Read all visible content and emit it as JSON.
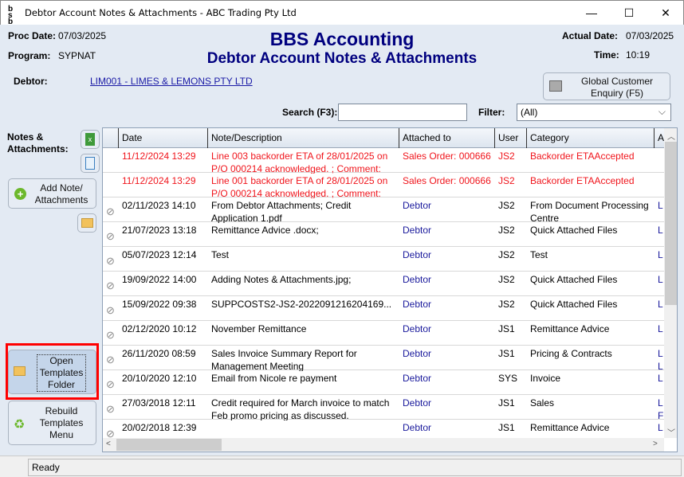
{
  "window": {
    "title": "Debtor Account Notes & Attachments - ABC Trading Pty Ltd",
    "app_icon": "bbs-logo-icon",
    "minimize": "—",
    "maximize": "☐",
    "close": "✕"
  },
  "header": {
    "proc_date_label": "Proc Date:",
    "proc_date": "07/03/2025",
    "program_label": "Program:",
    "program": "SYPNAT",
    "company": "BBS Accounting",
    "screen_title": "Debtor Account Notes & Attachments",
    "actual_date_label": "Actual Date:",
    "actual_date": "07/03/2025",
    "time_label": "Time:",
    "time": "10:19"
  },
  "debtor": {
    "label": "Debtor:",
    "value": "LIM001 - LIMES & LEMONS PTY LTD"
  },
  "global_enquiry": {
    "label": "Global Customer Enquiry (F5)"
  },
  "search": {
    "label": "Search (F3):",
    "value": ""
  },
  "filter": {
    "label": "Filter:",
    "value": "(All)"
  },
  "sidebar": {
    "heading": "Notes & Attachments:",
    "add_note": "Add Note/ Attachments",
    "open_templates": "Open Templates Folder",
    "rebuild_templates": "Rebuild Templates Menu"
  },
  "table": {
    "columns": [
      "Date",
      "Note/Description",
      "Attached to",
      "User",
      "Category",
      "A"
    ],
    "rows": [
      {
        "attach": false,
        "red": true,
        "date": "11/12/2024 13:29",
        "note": "Line 003 backorder ETA of 28/01/2025 on P/O 000214 acknowledged. ; Comment:",
        "attached_to": "Sales Order: 000666",
        "user": "JS2",
        "category": "Backorder ETAAccepted",
        "a": ""
      },
      {
        "attach": false,
        "red": true,
        "date": "11/12/2024 13:29",
        "note": "Line 001 backorder ETA of 28/01/2025 on P/O 000214 acknowledged. ; Comment:",
        "attached_to": "Sales Order: 000666",
        "user": "JS2",
        "category": "Backorder ETAAccepted",
        "a": ""
      },
      {
        "attach": true,
        "red": false,
        "date": "02/11/2023 14:10",
        "note": "From Debtor Attachments; Credit Application 1.pdf",
        "attached_to": "Debtor",
        "user": "JS2",
        "category": "From Document Processing Centre",
        "a": "L"
      },
      {
        "attach": true,
        "red": false,
        "date": "21/07/2023 13:18",
        "note": "Remittance Advice .docx;",
        "attached_to": "Debtor",
        "user": "JS2",
        "category": "Quick Attached Files",
        "a": "L"
      },
      {
        "attach": true,
        "red": false,
        "date": "05/07/2023 12:14",
        "note": "Test",
        "attached_to": "Debtor",
        "user": "JS2",
        "category": "Test",
        "a": "L"
      },
      {
        "attach": true,
        "red": false,
        "date": "19/09/2022 14:00",
        "note": "Adding Notes & Attachments.jpg;",
        "attached_to": "Debtor",
        "user": "JS2",
        "category": "Quick Attached Files",
        "a": "L"
      },
      {
        "attach": true,
        "red": false,
        "date": "15/09/2022 09:38",
        "note": "SUPPCOSTS2-JS2-2022091216204169...",
        "attached_to": "Debtor",
        "user": "JS2",
        "category": "Quick Attached Files",
        "a": "L"
      },
      {
        "attach": true,
        "red": false,
        "date": "02/12/2020 10:12",
        "note": "November Remittance",
        "attached_to": "Debtor",
        "user": "JS1",
        "category": "Remittance Advice",
        "a": "L"
      },
      {
        "attach": true,
        "red": false,
        "date": "26/11/2020 08:59",
        "note": "Sales Invoice Summary Report for Management Meeting",
        "attached_to": "Debtor",
        "user": "JS1",
        "category": "Pricing & Contracts",
        "a": "L L"
      },
      {
        "attach": true,
        "red": false,
        "date": "20/10/2020 12:10",
        "note": "Email from Nicole re payment",
        "attached_to": "Debtor",
        "user": "SYS",
        "category": "Invoice",
        "a": "L"
      },
      {
        "attach": true,
        "red": false,
        "date": "27/03/2018 12:11",
        "note": "Credit required for March invoice to match Feb promo pricing as discussed.",
        "attached_to": "Debtor",
        "user": "JS1",
        "category": "Sales",
        "a": "L F"
      },
      {
        "attach": true,
        "red": false,
        "date": "20/02/2018 12:39",
        "note": "",
        "attached_to": "Debtor",
        "user": "JS1",
        "category": "Remittance Advice",
        "a": "L"
      }
    ]
  },
  "status": {
    "text": "Ready"
  },
  "colors": {
    "title_blue": "#00007f",
    "note_red": "#f0151c",
    "link_blue": "#1a1a9c",
    "highlight": "#ff0000"
  }
}
